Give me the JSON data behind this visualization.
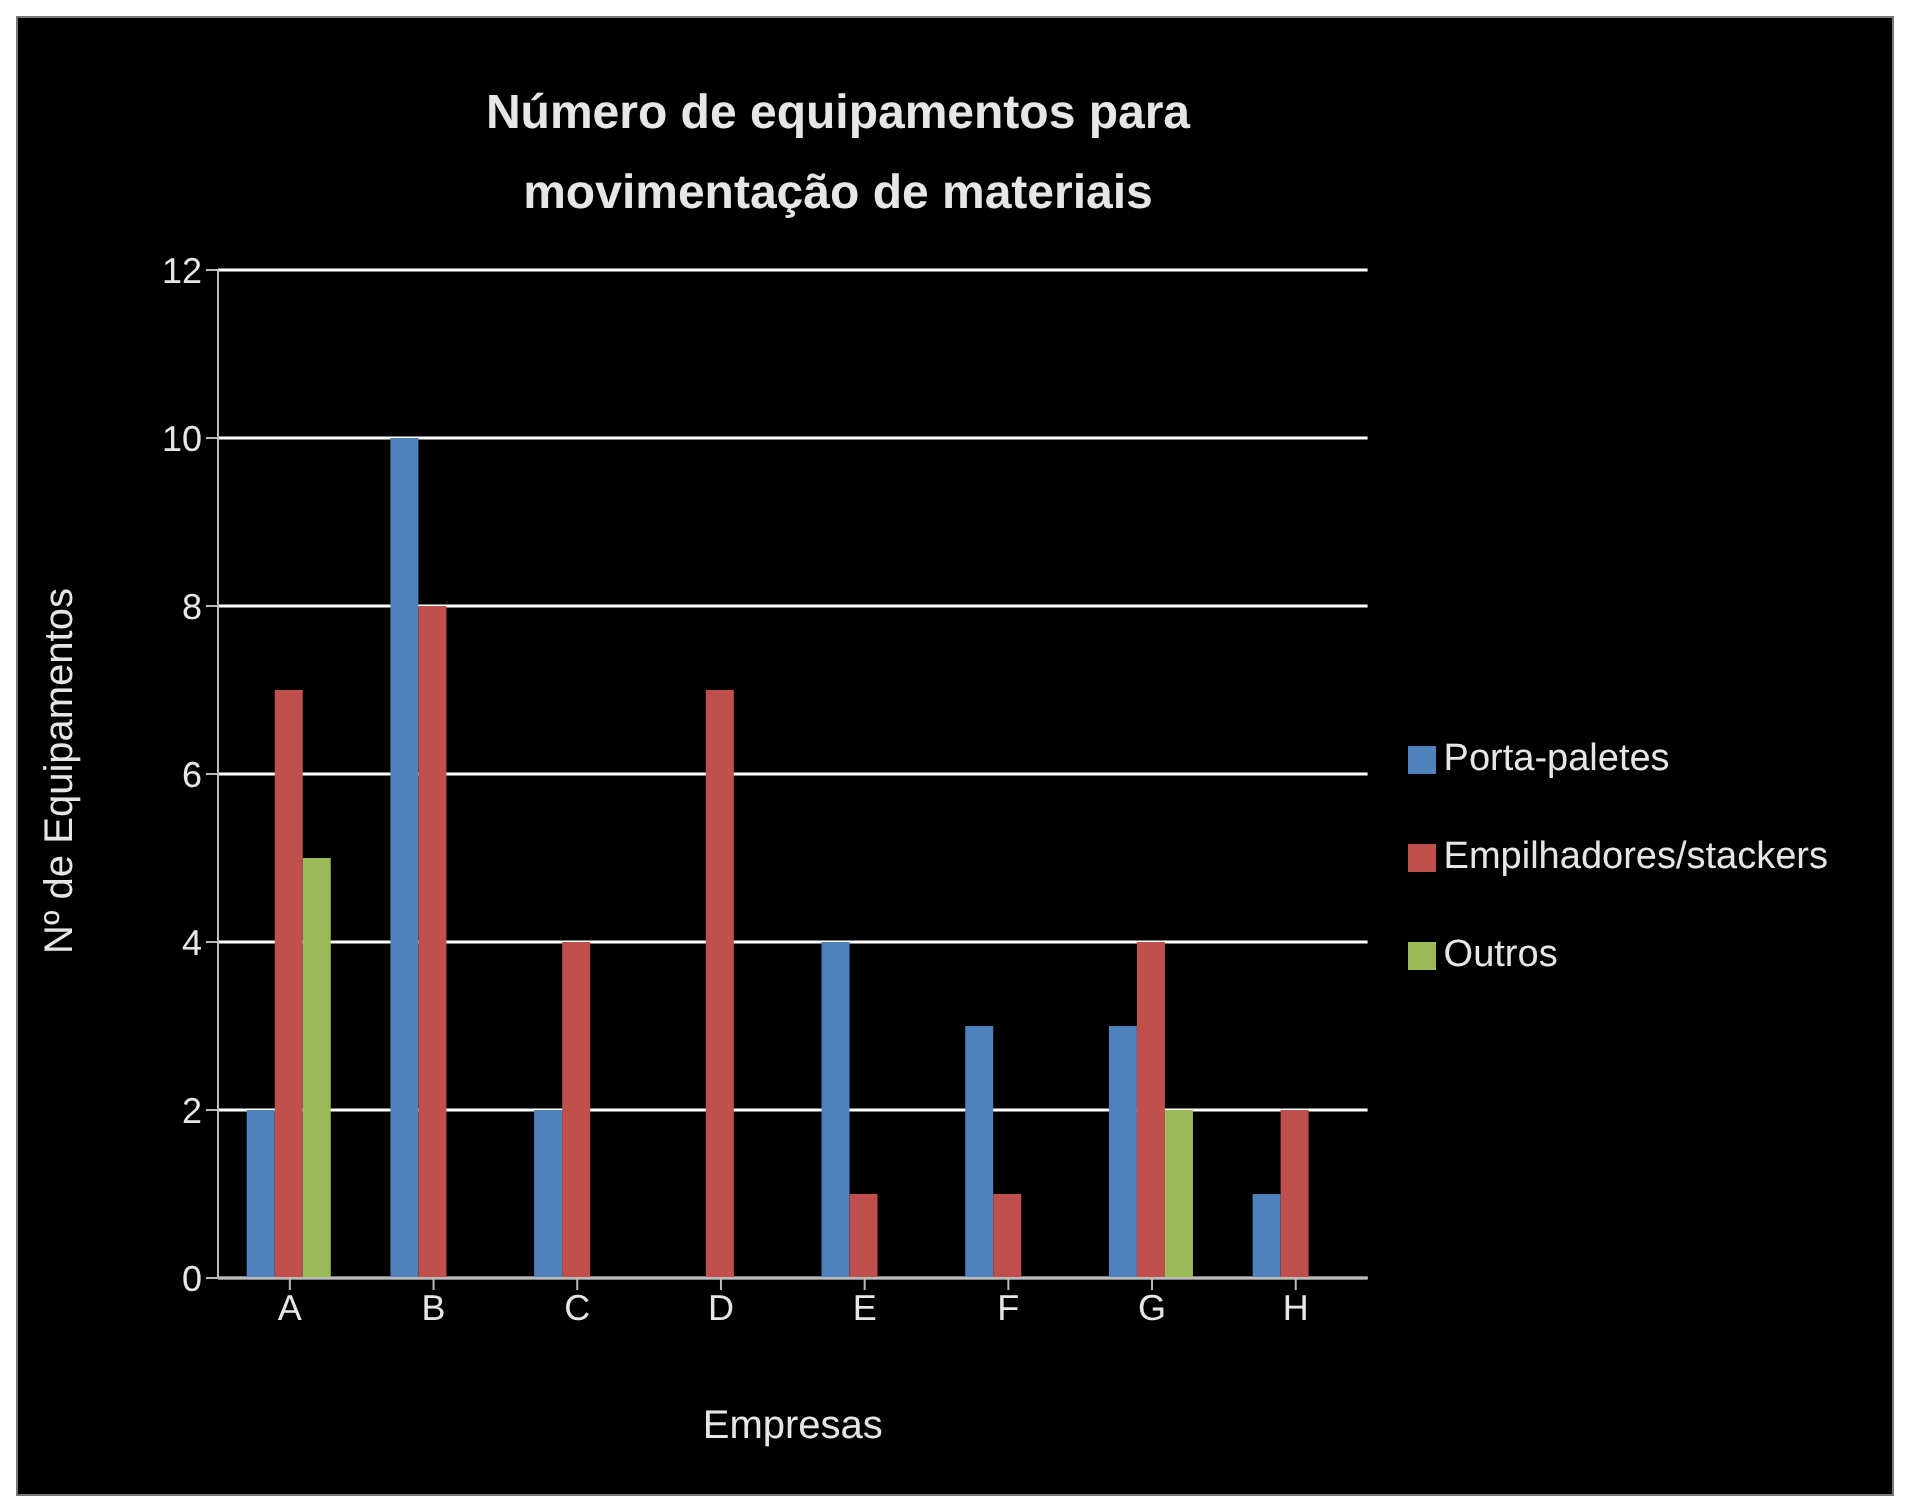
{
  "chart_data": {
    "type": "bar",
    "title": "Número de equipamentos para movimentação de materiais",
    "xlabel": "Empresas",
    "ylabel": "Nº de Equipamentos",
    "categories": [
      "A",
      "B",
      "C",
      "D",
      "E",
      "F",
      "G",
      "H"
    ],
    "series": [
      {
        "name": "Porta-paletes",
        "color": "#4f81bd",
        "values": [
          2,
          10,
          2,
          0,
          4,
          3,
          3,
          1
        ]
      },
      {
        "name": "Empilhadores/stackers",
        "color": "#c0504d",
        "values": [
          7,
          8,
          4,
          7,
          1,
          1,
          4,
          2
        ]
      },
      {
        "name": "Outros",
        "color": "#9bbb59",
        "values": [
          5,
          0,
          0,
          0,
          0,
          0,
          2,
          0
        ]
      }
    ],
    "ylim": [
      0,
      12
    ],
    "yticks": [
      0,
      2,
      4,
      6,
      8,
      10,
      12
    ],
    "grid": "y",
    "legend": "right"
  }
}
